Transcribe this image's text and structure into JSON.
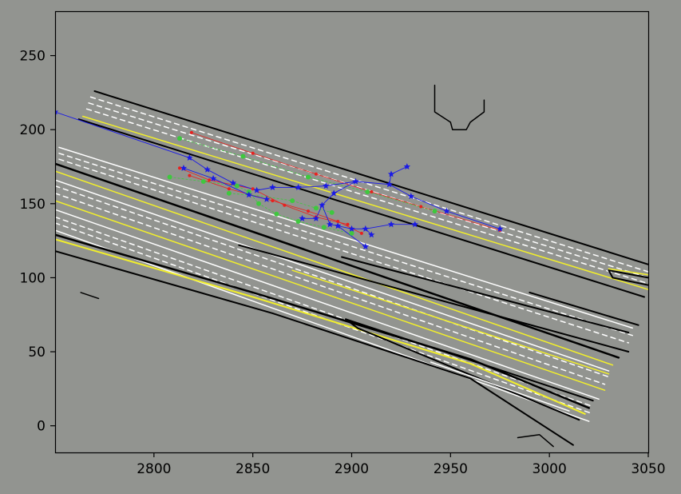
{
  "colors": {
    "background": "#929490",
    "lane_white": "#ffffff",
    "lane_yellow": "#f2ef2a",
    "boundary": "#000000",
    "track_red": "#e8211f",
    "track_green": "#3ec83e",
    "track_blue": "#1a1ae6"
  },
  "chart_data": {
    "type": "scatter",
    "title": "",
    "xlabel": "",
    "ylabel": "",
    "xlim": [
      2750,
      3050
    ],
    "ylim": [
      -18,
      280
    ],
    "xticks": [
      2800,
      2850,
      2900,
      2950,
      3000,
      3050
    ],
    "yticks": [
      0,
      50,
      100,
      150,
      200,
      250
    ],
    "grid": false,
    "road_lines": [
      {
        "color": "black",
        "dash": false,
        "width": 2,
        "points": [
          [
            2770,
            226
          ],
          [
            3050,
            109
          ]
        ]
      },
      {
        "color": "black",
        "dash": false,
        "width": 2,
        "points": [
          [
            2762,
            207
          ],
          [
            3048,
            87
          ]
        ]
      },
      {
        "color": "yellow",
        "dash": false,
        "width": 1.5,
        "points": [
          [
            2764,
            209
          ],
          [
            3050,
            92
          ]
        ]
      },
      {
        "color": "white",
        "dash": true,
        "width": 1.5,
        "points": [
          [
            2768,
            222
          ],
          [
            3050,
            104
          ]
        ]
      },
      {
        "color": "white",
        "dash": true,
        "width": 1.5,
        "points": [
          [
            2767,
            218
          ],
          [
            3050,
            100
          ]
        ]
      },
      {
        "color": "white",
        "dash": true,
        "width": 1.5,
        "points": [
          [
            2766,
            214
          ],
          [
            3050,
            96
          ]
        ]
      },
      {
        "color": "white",
        "dash": false,
        "width": 1.5,
        "points": [
          [
            2752,
            188
          ],
          [
            3042,
            66
          ]
        ]
      },
      {
        "color": "white",
        "dash": true,
        "width": 1.5,
        "points": [
          [
            2752,
            184
          ],
          [
            3042,
            61
          ]
        ]
      },
      {
        "color": "white",
        "dash": true,
        "width": 1.5,
        "points": [
          [
            2752,
            180
          ],
          [
            3040,
            56
          ]
        ]
      },
      {
        "color": "black",
        "dash": false,
        "width": 2.5,
        "points": [
          [
            2750,
            177
          ],
          [
            3035,
            46
          ]
        ]
      },
      {
        "color": "yellow",
        "dash": false,
        "width": 1.5,
        "points": [
          [
            2750,
            172
          ],
          [
            3032,
            41
          ]
        ]
      },
      {
        "color": "white",
        "dash": false,
        "width": 1.5,
        "points": [
          [
            2750,
            166
          ],
          [
            3030,
            37
          ]
        ]
      },
      {
        "color": "white",
        "dash": true,
        "width": 1.5,
        "points": [
          [
            2750,
            162
          ],
          [
            3030,
            33
          ]
        ]
      },
      {
        "color": "white",
        "dash": true,
        "width": 1.5,
        "points": [
          [
            2750,
            157
          ],
          [
            3028,
            28
          ]
        ]
      },
      {
        "color": "yellow",
        "dash": false,
        "width": 1.5,
        "points": [
          [
            2750,
            152
          ],
          [
            3028,
            24
          ]
        ]
      },
      {
        "color": "white",
        "dash": false,
        "width": 1.5,
        "points": [
          [
            2750,
            146
          ],
          [
            3025,
            18
          ]
        ]
      },
      {
        "color": "white",
        "dash": true,
        "width": 1.5,
        "points": [
          [
            2750,
            141
          ],
          [
            3022,
            13
          ]
        ]
      },
      {
        "color": "white",
        "dash": true,
        "width": 1.5,
        "points": [
          [
            2750,
            137
          ],
          [
            3022,
            8
          ]
        ]
      },
      {
        "color": "white",
        "dash": false,
        "width": 1.5,
        "points": [
          [
            2750,
            132
          ],
          [
            3020,
            3
          ]
        ]
      },
      {
        "color": "black",
        "dash": false,
        "width": 2.5,
        "points": [
          [
            2750,
            129
          ],
          [
            2850,
            90
          ],
          [
            2960,
            45
          ],
          [
            3020,
            12
          ]
        ]
      },
      {
        "color": "yellow",
        "dash": false,
        "width": 2,
        "points": [
          [
            2750,
            126
          ],
          [
            2850,
            87
          ],
          [
            2960,
            42
          ],
          [
            3018,
            8
          ]
        ]
      },
      {
        "color": "black",
        "dash": false,
        "width": 2,
        "points": [
          [
            2750,
            118
          ],
          [
            2860,
            76
          ],
          [
            2960,
            32
          ],
          [
            3012,
            -13
          ]
        ]
      },
      {
        "color": "black",
        "dash": false,
        "width": 2,
        "points": [
          [
            2843,
            122
          ],
          [
            3040,
            50
          ]
        ]
      },
      {
        "color": "black",
        "dash": false,
        "width": 2,
        "points": [
          [
            2895,
            114
          ],
          [
            3040,
            63
          ]
        ]
      },
      {
        "color": "yellow",
        "dash": false,
        "width": 1.5,
        "points": [
          [
            2870,
            105
          ],
          [
            3030,
            35
          ]
        ]
      },
      {
        "color": "black",
        "dash": false,
        "width": 2,
        "points": [
          [
            2897,
            72
          ],
          [
            3022,
            17
          ]
        ]
      },
      {
        "color": "black",
        "dash": false,
        "width": 2,
        "points": [
          [
            2897,
            72
          ],
          [
            2903,
            66
          ],
          [
            3015,
            4
          ]
        ]
      },
      {
        "color": "white",
        "dash": false,
        "width": 1.5,
        "points": [
          [
            2940,
            43
          ],
          [
            3010,
            10
          ]
        ]
      },
      {
        "color": "black",
        "dash": false,
        "width": 2,
        "points": [
          [
            2990,
            90
          ],
          [
            3045,
            68
          ]
        ]
      },
      {
        "color": "black",
        "dash": false,
        "width": 2,
        "points": [
          [
            3030,
            105
          ],
          [
            3050,
            100
          ]
        ]
      },
      {
        "color": "black",
        "dash": false,
        "width": 2,
        "points": [
          [
            3030,
            105
          ],
          [
            3032,
            100
          ],
          [
            3050,
            95
          ]
        ]
      },
      {
        "color": "yellow",
        "dash": false,
        "width": 1.5,
        "points": [
          [
            3030,
            106
          ],
          [
            3050,
            102
          ]
        ]
      },
      {
        "color": "black",
        "dash": false,
        "width": 1.5,
        "points": [
          [
            2942,
            230
          ],
          [
            2942,
            212
          ],
          [
            2950,
            205
          ],
          [
            2951,
            200
          ],
          [
            2958,
            200
          ],
          [
            2960,
            205
          ],
          [
            2967,
            212
          ],
          [
            2967,
            220
          ]
        ]
      },
      {
        "color": "black",
        "dash": false,
        "width": 1.5,
        "points": [
          [
            2763,
            90
          ],
          [
            2772,
            86
          ]
        ]
      },
      {
        "color": "black",
        "dash": false,
        "width": 1.5,
        "points": [
          [
            2984,
            -8
          ],
          [
            2995,
            -6
          ],
          [
            3002,
            -14
          ]
        ]
      }
    ],
    "series": [
      {
        "color": "red",
        "points": [
          [
            2819,
            198
          ],
          [
            2850,
            184
          ],
          [
            2882,
            170
          ],
          [
            2910,
            158
          ],
          [
            2935,
            148
          ],
          [
            2975,
            132
          ],
          [
            2813,
            174
          ],
          [
            2828,
            166
          ],
          [
            2850,
            160
          ],
          [
            2866,
            149
          ],
          [
            2882,
            141
          ],
          [
            2898,
            136
          ],
          [
            2818,
            169
          ],
          [
            2838,
            160
          ],
          [
            2860,
            152
          ],
          [
            2878,
            145
          ],
          [
            2893,
            138
          ],
          [
            2905,
            130
          ]
        ]
      },
      {
        "color": "green",
        "points": [
          [
            2813,
            194
          ],
          [
            2845,
            182
          ],
          [
            2878,
            168
          ],
          [
            2908,
            158
          ],
          [
            2942,
            145
          ],
          [
            2808,
            168
          ],
          [
            2825,
            165
          ],
          [
            2842,
            162
          ],
          [
            2848,
            158
          ],
          [
            2853,
            150
          ],
          [
            2862,
            143
          ],
          [
            2873,
            138
          ],
          [
            2886,
            134
          ],
          [
            2900,
            130
          ],
          [
            2838,
            157
          ],
          [
            2870,
            152
          ],
          [
            2882,
            147
          ],
          [
            2890,
            144
          ]
        ]
      },
      {
        "color": "blue",
        "points": [
          [
            2750,
            212
          ],
          [
            2818,
            181
          ],
          [
            2827,
            173
          ],
          [
            2840,
            164
          ],
          [
            2852,
            159
          ],
          [
            2860,
            161
          ],
          [
            2873,
            161
          ],
          [
            2887,
            162
          ],
          [
            2902,
            165
          ],
          [
            2919,
            163
          ],
          [
            2930,
            155
          ],
          [
            2948,
            145
          ],
          [
            2975,
            133
          ],
          [
            2920,
            170
          ],
          [
            2928,
            175
          ],
          [
            2891,
            157
          ],
          [
            2885,
            149
          ],
          [
            2882,
            140
          ],
          [
            2875,
            140
          ],
          [
            2889,
            136
          ],
          [
            2893,
            135
          ],
          [
            2900,
            133
          ],
          [
            2907,
            133
          ],
          [
            2910,
            129
          ],
          [
            2920,
            136
          ],
          [
            2932,
            136
          ],
          [
            2907,
            121
          ],
          [
            2815,
            174
          ],
          [
            2830,
            167
          ],
          [
            2848,
            156
          ],
          [
            2857,
            153
          ]
        ]
      }
    ]
  },
  "tracks": [
    {
      "color": "red",
      "points": [
        [
          2819,
          198
        ],
        [
          2850,
          184
        ],
        [
          2882,
          170
        ],
        [
          2910,
          158
        ],
        [
          2935,
          148
        ],
        [
          2975,
          132
        ]
      ]
    },
    {
      "color": "red",
      "points": [
        [
          2813,
          174
        ],
        [
          2828,
          166
        ],
        [
          2850,
          160
        ],
        [
          2866,
          149
        ],
        [
          2882,
          141
        ],
        [
          2898,
          136
        ]
      ]
    },
    {
      "color": "red",
      "points": [
        [
          2818,
          169
        ],
        [
          2838,
          160
        ],
        [
          2860,
          152
        ],
        [
          2878,
          145
        ],
        [
          2893,
          138
        ],
        [
          2905,
          130
        ]
      ]
    },
    {
      "color": "green",
      "points": [
        [
          2813,
          194
        ],
        [
          2845,
          182
        ],
        [
          2878,
          168
        ],
        [
          2908,
          158
        ],
        [
          2942,
          145
        ]
      ]
    },
    {
      "color": "green",
      "points": [
        [
          2808,
          168
        ],
        [
          2825,
          165
        ],
        [
          2842,
          162
        ],
        [
          2848,
          158
        ],
        [
          2853,
          150
        ],
        [
          2862,
          143
        ],
        [
          2873,
          138
        ],
        [
          2886,
          134
        ],
        [
          2900,
          130
        ]
      ]
    },
    {
      "color": "green",
      "points": [
        [
          2838,
          157
        ],
        [
          2855,
          155
        ],
        [
          2870,
          152
        ],
        [
          2882,
          147
        ],
        [
          2890,
          144
        ]
      ]
    },
    {
      "color": "blue",
      "points": [
        [
          2750,
          212
        ],
        [
          2818,
          181
        ],
        [
          2827,
          173
        ],
        [
          2840,
          164
        ],
        [
          2852,
          159
        ],
        [
          2860,
          161
        ],
        [
          2873,
          161
        ],
        [
          2887,
          162
        ],
        [
          2902,
          165
        ],
        [
          2919,
          163
        ],
        [
          2930,
          155
        ],
        [
          2948,
          145
        ],
        [
          2975,
          133
        ]
      ]
    },
    {
      "color": "blue",
      "points": [
        [
          2919,
          163
        ],
        [
          2920,
          170
        ],
        [
          2928,
          175
        ]
      ]
    },
    {
      "color": "blue",
      "points": [
        [
          2902,
          165
        ],
        [
          2891,
          157
        ],
        [
          2885,
          149
        ],
        [
          2882,
          140
        ],
        [
          2875,
          140
        ]
      ]
    },
    {
      "color": "blue",
      "points": [
        [
          2885,
          149
        ],
        [
          2889,
          136
        ],
        [
          2893,
          135
        ],
        [
          2900,
          133
        ],
        [
          2907,
          133
        ],
        [
          2910,
          129
        ]
      ]
    },
    {
      "color": "blue",
      "points": [
        [
          2907,
          133
        ],
        [
          2920,
          136
        ],
        [
          2932,
          136
        ]
      ]
    },
    {
      "color": "blue",
      "points": [
        [
          2893,
          135
        ],
        [
          2907,
          121
        ]
      ]
    },
    {
      "color": "blue",
      "points": [
        [
          2815,
          174
        ],
        [
          2830,
          167
        ],
        [
          2848,
          156
        ],
        [
          2857,
          153
        ]
      ]
    }
  ]
}
